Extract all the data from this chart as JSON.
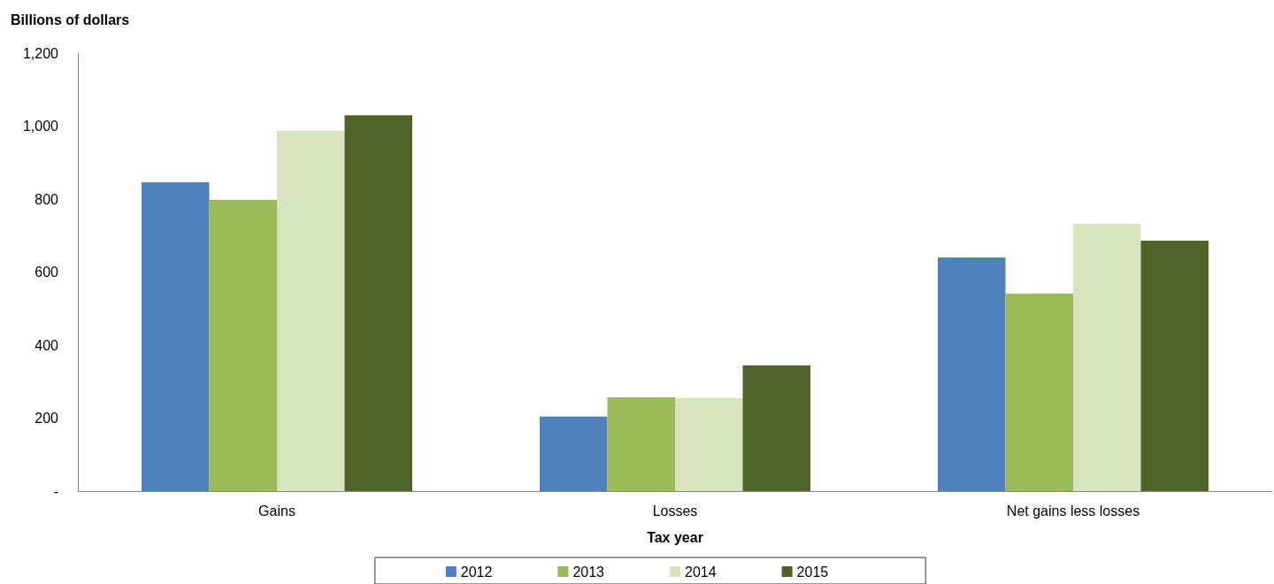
{
  "chart_data": {
    "type": "bar",
    "ylabel": "Billions of dollars",
    "xlabel": "Tax year",
    "categories": [
      "Gains",
      "Losses",
      "Net gains less losses"
    ],
    "series": [
      {
        "name": "2012",
        "color": "#4f81bd",
        "values": [
          846,
          204,
          640
        ]
      },
      {
        "name": "2013",
        "color": "#9bbb59",
        "values": [
          798,
          257,
          541
        ]
      },
      {
        "name": "2014",
        "color": "#d7e4bd",
        "values": [
          987,
          255,
          732
        ]
      },
      {
        "name": "2015",
        "color": "#4f6228",
        "values": [
          1030,
          344,
          686
        ]
      }
    ],
    "ylim": [
      0,
      1200
    ],
    "yticks": [
      {
        "value": 0,
        "label": "-"
      },
      {
        "value": 200,
        "label": "200"
      },
      {
        "value": 400,
        "label": "400"
      },
      {
        "value": 600,
        "label": "600"
      },
      {
        "value": 800,
        "label": "800"
      },
      {
        "value": 1000,
        "label": "1,000"
      },
      {
        "value": 1200,
        "label": "1,200"
      }
    ],
    "grid": false,
    "legend": "bottom"
  }
}
